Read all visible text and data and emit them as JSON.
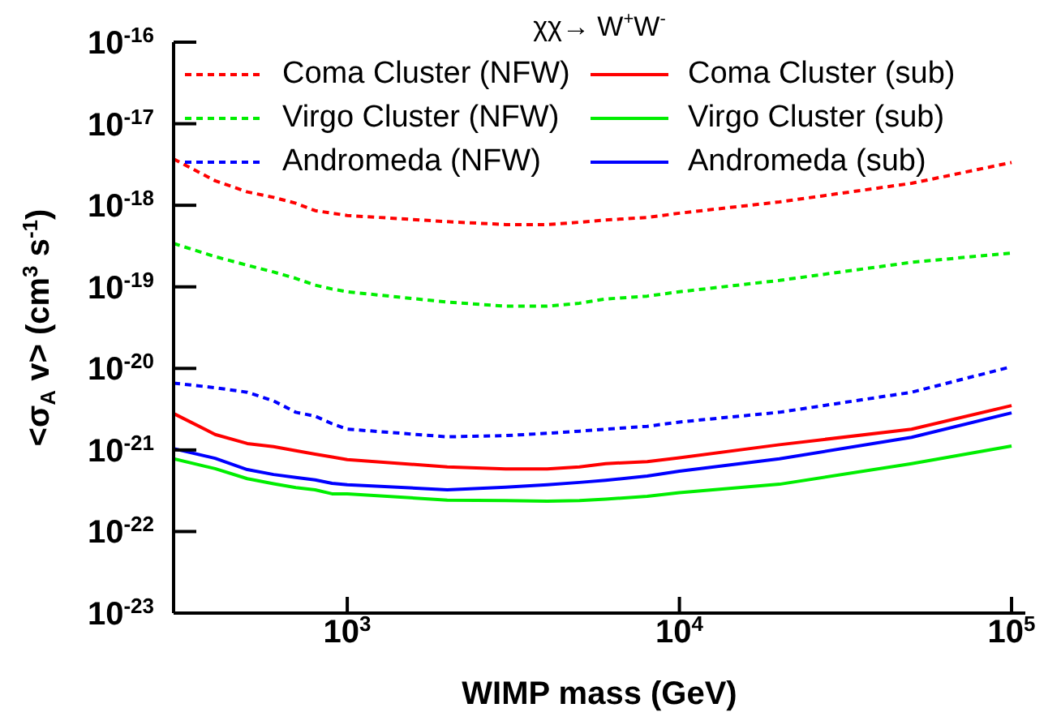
{
  "chart_data": {
    "type": "line",
    "title": "χχ→ W$^{+}$W$^{-}$",
    "xlabel": "WIMP mass (GeV)",
    "ylabel": "<σ$_{A}$ v> (cm$^{3}$ s$^{-1}$)",
    "x": [
      300,
      400,
      500,
      600,
      700,
      800,
      900,
      1000,
      2000,
      3000,
      4000,
      5000,
      6000,
      8000,
      10000,
      20000,
      50000,
      100000
    ],
    "series": [
      {
        "name": "Coma Cluster (NFW)",
        "color": "#ff0000",
        "line_style": "dashed",
        "values": [
          3.7e-18,
          2e-18,
          1.46e-18,
          1.25e-18,
          1.06e-18,
          8.6e-19,
          8e-19,
          7.5e-19,
          6.3e-19,
          5.8e-19,
          5.8e-19,
          6.2e-19,
          6.6e-19,
          7.1e-19,
          8e-19,
          1.1e-18,
          1.86e-18,
          3.35e-18
        ]
      },
      {
        "name": "Virgo Cluster (NFW)",
        "color": "#00ee00",
        "line_style": "dashed",
        "values": [
          3.4e-19,
          2.35e-19,
          1.84e-19,
          1.52e-19,
          1.27e-19,
          1.05e-19,
          9.4e-20,
          8.7e-20,
          6.5e-20,
          5.8e-20,
          5.8e-20,
          6.3e-20,
          7.1e-20,
          7.7e-20,
          8.7e-20,
          1.2e-19,
          2e-19,
          2.6e-19
        ]
      },
      {
        "name": "Andromeda (NFW)",
        "color": "#0000ff",
        "line_style": "dashed",
        "values": [
          6.6e-21,
          5.8e-21,
          5.1e-21,
          4e-21,
          2.9e-21,
          2.6e-21,
          2.1e-21,
          1.8e-21,
          1.45e-21,
          1.5e-21,
          1.6e-21,
          1.7e-21,
          1.8e-21,
          1.95e-21,
          2.2e-21,
          2.9e-21,
          5.1e-21,
          1.05e-20
        ]
      },
      {
        "name": "Coma Cluster (sub)",
        "color": "#ff0000",
        "line_style": "solid",
        "values": [
          2.8e-21,
          1.55e-21,
          1.2e-21,
          1.1e-21,
          9.8e-22,
          8.9e-22,
          8.2e-22,
          7.6e-22,
          6.2e-22,
          5.85e-22,
          5.85e-22,
          6.2e-22,
          6.8e-22,
          7.2e-22,
          8e-22,
          1.16e-21,
          1.8e-21,
          3.5e-21
        ]
      },
      {
        "name": "Virgo Cluster (sub)",
        "color": "#00ee00",
        "line_style": "solid",
        "values": [
          7.8e-22,
          5.9e-22,
          4.45e-22,
          3.85e-22,
          3.45e-22,
          3.25e-22,
          2.9e-22,
          2.9e-22,
          2.43e-22,
          2.4e-22,
          2.35e-22,
          2.4e-22,
          2.5e-22,
          2.7e-22,
          3e-22,
          3.8e-22,
          6.8e-22,
          1.12e-21
        ]
      },
      {
        "name": "Andromeda (sub)",
        "color": "#0000ff",
        "line_style": "solid",
        "values": [
          1.04e-21,
          7.9e-22,
          5.75e-22,
          5e-22,
          4.6e-22,
          4.3e-22,
          3.9e-22,
          3.75e-22,
          3.25e-22,
          3.5e-22,
          3.75e-22,
          4e-22,
          4.25e-22,
          4.8e-22,
          5.5e-22,
          7.8e-22,
          1.43e-21,
          2.85e-21
        ]
      }
    ],
    "log": "xy",
    "xlim": [
      300,
      110000
    ],
    "xticks": [
      {
        "value": 1000,
        "label": "10$^{3}$"
      },
      {
        "value": 10000,
        "label": "10$^{4}$"
      },
      {
        "value": 100000,
        "label": "10$^{5}$"
      }
    ],
    "ylim": [
      1e-23,
      1e-16
    ],
    "yticks": [
      {
        "value": 1e-23,
        "label": "10$^{-23}$"
      },
      {
        "value": 1e-22,
        "label": "10$^{-22}$"
      },
      {
        "value": 1e-21,
        "label": "10$^{-21}$"
      },
      {
        "value": 1e-20,
        "label": "10$^{-20}$"
      },
      {
        "value": 1e-19,
        "label": "10$^{-19}$"
      },
      {
        "value": 1e-18,
        "label": "10$^{-18}$"
      },
      {
        "value": 1e-17,
        "label": "10$^{-17}$"
      },
      {
        "value": 1e-16,
        "label": "10$^{-16}$"
      }
    ],
    "grid": false,
    "legend": "top"
  }
}
